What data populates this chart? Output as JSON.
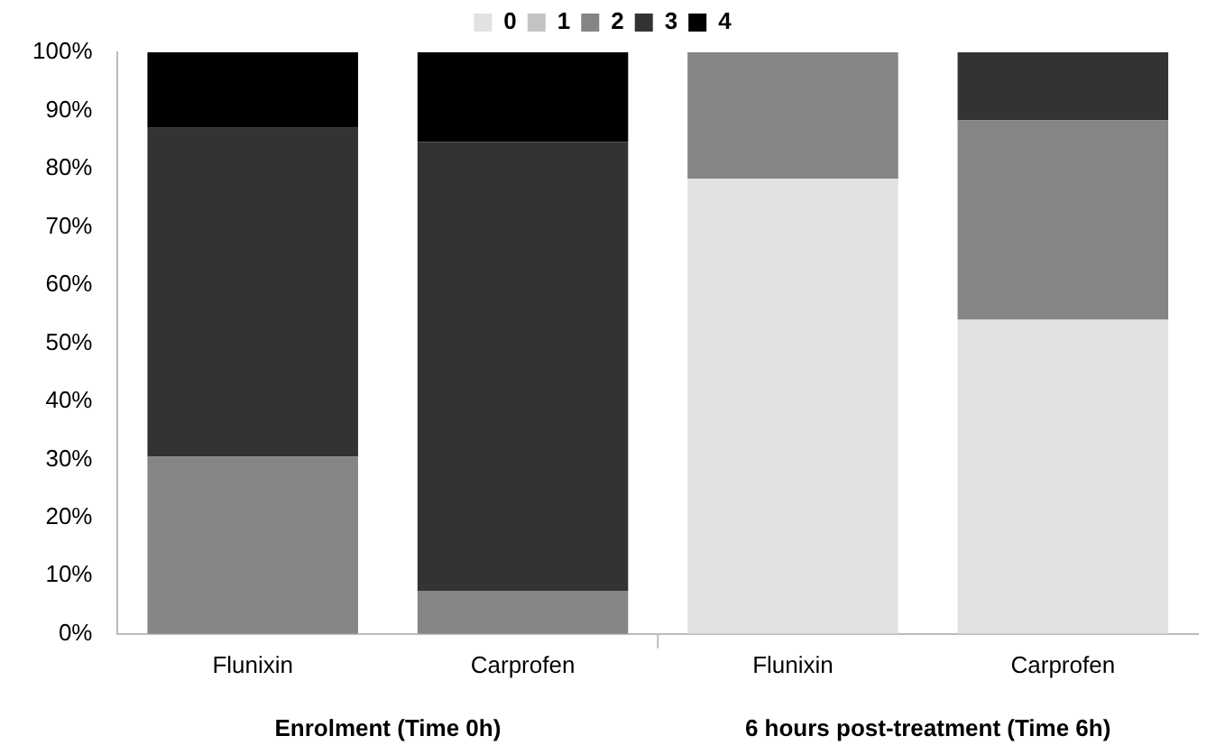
{
  "chart_data": {
    "type": "bar",
    "stacked": true,
    "categories": [
      "Flunixin",
      "Carprofen",
      "Flunixin",
      "Carprofen"
    ],
    "series": [
      {
        "name": "0",
        "color": "#e2e2e2",
        "values": [
          0,
          0,
          78.3,
          54
        ]
      },
      {
        "name": "1",
        "color": "#c4c4c4",
        "values": [
          0,
          0,
          0,
          0
        ]
      },
      {
        "name": "2",
        "color": "#858585",
        "values": [
          30.5,
          7.4,
          21.7,
          34.3
        ]
      },
      {
        "name": "3",
        "color": "#333333",
        "values": [
          56.5,
          77.2,
          0,
          11.7
        ]
      },
      {
        "name": "4",
        "color": "#000000",
        "values": [
          13,
          15.4,
          0,
          0
        ]
      }
    ],
    "ylim": [
      0,
      100
    ],
    "yticks": [
      {
        "value": 0,
        "label": "0%"
      },
      {
        "value": 10,
        "label": "10%"
      },
      {
        "value": 20,
        "label": "20%"
      },
      {
        "value": 30,
        "label": "30%"
      },
      {
        "value": 40,
        "label": "40%"
      },
      {
        "value": 50,
        "label": "50%"
      },
      {
        "value": 60,
        "label": "60%"
      },
      {
        "value": 70,
        "label": "70%"
      },
      {
        "value": 80,
        "label": "80%"
      },
      {
        "value": 90,
        "label": "90%"
      },
      {
        "value": 100,
        "label": "100%"
      }
    ],
    "grid": false,
    "legend": "top",
    "annotations": [
      "Enrolment (Time 0h)",
      "6 hours post-treatment (Time 6h)"
    ]
  }
}
